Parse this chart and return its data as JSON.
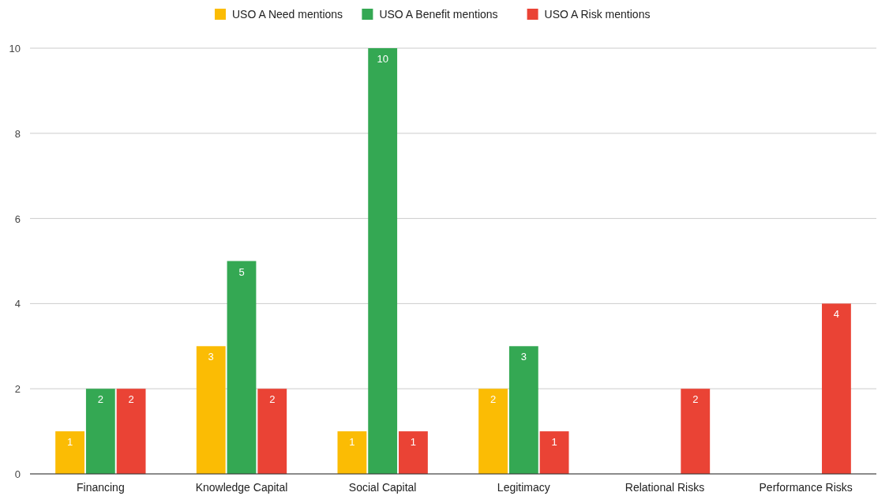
{
  "chart_data": {
    "type": "bar",
    "categories": [
      "Financing",
      "Knowledge Capital",
      "Social Capital",
      "Legitimacy",
      "Relational Risks",
      "Performance Risks"
    ],
    "series": [
      {
        "name": "USO A Need mentions",
        "color": "#fbbc04",
        "values": [
          1,
          3,
          1,
          2,
          null,
          null
        ]
      },
      {
        "name": "USO A Benefit mentions",
        "color": "#34a853",
        "values": [
          2,
          5,
          10,
          3,
          null,
          null
        ]
      },
      {
        "name": "USO A Risk mentions",
        "color": "#ea4335",
        "values": [
          2,
          2,
          1,
          1,
          2,
          4
        ]
      }
    ],
    "ylim": [
      0,
      10
    ],
    "yticks": [
      0,
      2,
      4,
      6,
      8,
      10
    ],
    "grid": "y",
    "legend": "top",
    "data_labels": true
  }
}
